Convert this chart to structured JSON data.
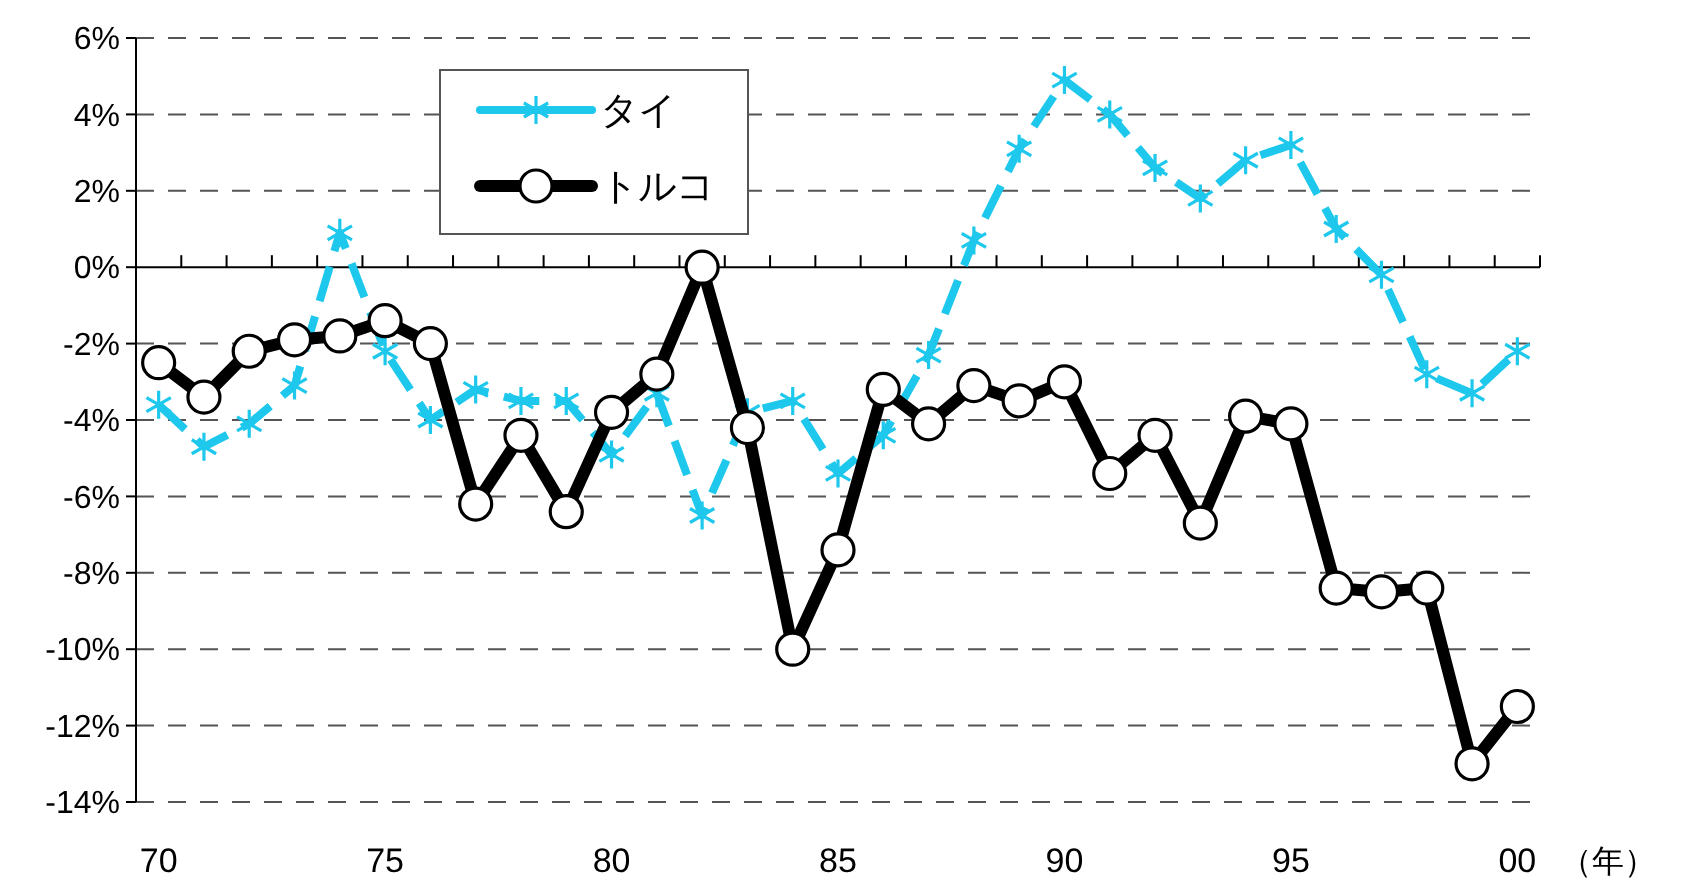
{
  "chart_data": {
    "type": "line",
    "xlabel": "（年）",
    "categories": [
      "70",
      null,
      null,
      null,
      null,
      "75",
      null,
      null,
      null,
      null,
      "80",
      null,
      null,
      null,
      null,
      "85",
      null,
      null,
      null,
      null,
      "90",
      null,
      null,
      null,
      null,
      "95",
      null,
      null,
      null,
      null,
      "00"
    ],
    "series": [
      {
        "name": "タイ",
        "color": "#1ec8ec",
        "marker": "cross",
        "line_style": "dashed",
        "values": [
          -3.6,
          -4.7,
          -4.1,
          -3.1,
          0.9,
          -2.2,
          -4.0,
          -3.2,
          -3.5,
          -3.5,
          -4.9,
          -3.3,
          -6.5,
          -3.8,
          -3.5,
          -5.4,
          -4.4,
          -2.3,
          0.7,
          3.1,
          4.9,
          4.0,
          2.6,
          1.8,
          2.8,
          3.2,
          1.0,
          -0.2,
          -2.8,
          -3.3,
          -2.2
        ]
      },
      {
        "name": "トルコ",
        "color": "#000000",
        "marker": "circle",
        "line_style": "solid",
        "values": [
          -2.5,
          -3.4,
          -2.2,
          -1.9,
          -1.8,
          -1.4,
          -2.0,
          -6.2,
          -4.4,
          -6.4,
          -3.8,
          -2.8,
          0.0,
          -4.2,
          -10.0,
          -7.4,
          -3.2,
          -4.1,
          -3.1,
          -3.5,
          -3.0,
          -5.4,
          -4.4,
          -6.7,
          -3.9,
          -4.1,
          -8.4,
          -8.5,
          -8.4,
          -13.0,
          -11.5
        ]
      }
    ],
    "ylim": [
      -14,
      6
    ],
    "yticks": [
      {
        "value": 6,
        "label": "6%"
      },
      {
        "value": 4,
        "label": "4%"
      },
      {
        "value": 2,
        "label": "2%"
      },
      {
        "value": 0,
        "label": "0%"
      },
      {
        "value": -2,
        "label": "-2%"
      },
      {
        "value": -4,
        "label": "-4%"
      },
      {
        "value": -6,
        "label": "-6%"
      },
      {
        "value": -8,
        "label": "-8%"
      },
      {
        "value": -10,
        "label": "-10%"
      },
      {
        "value": -12,
        "label": "-12%"
      },
      {
        "value": -14,
        "label": "-14%"
      }
    ],
    "grid": "y",
    "legend": "top left"
  }
}
